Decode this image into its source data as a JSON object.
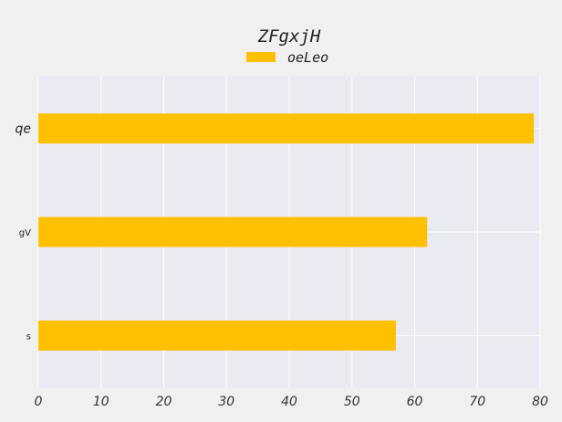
{
  "chart_data": {
    "type": "bar",
    "orientation": "horizontal",
    "title": "ZFgxjH",
    "categories": [
      "qe",
      "gV",
      "s"
    ],
    "series": [
      {
        "name": "oeLeo",
        "values": [
          79,
          62,
          57
        ],
        "color": "#ffc000"
      }
    ],
    "xlim": [
      0,
      80
    ],
    "xticks": [
      0,
      10,
      20,
      30,
      40,
      50,
      60,
      70,
      80
    ],
    "xtick_labels": [
      "0",
      "10",
      "20",
      "30",
      "40",
      "50",
      "60",
      "70",
      "80"
    ],
    "xlabel": "",
    "ylabel": "",
    "grid": true,
    "legend_position": "top-center",
    "plot_background": "#eaeaf2"
  }
}
